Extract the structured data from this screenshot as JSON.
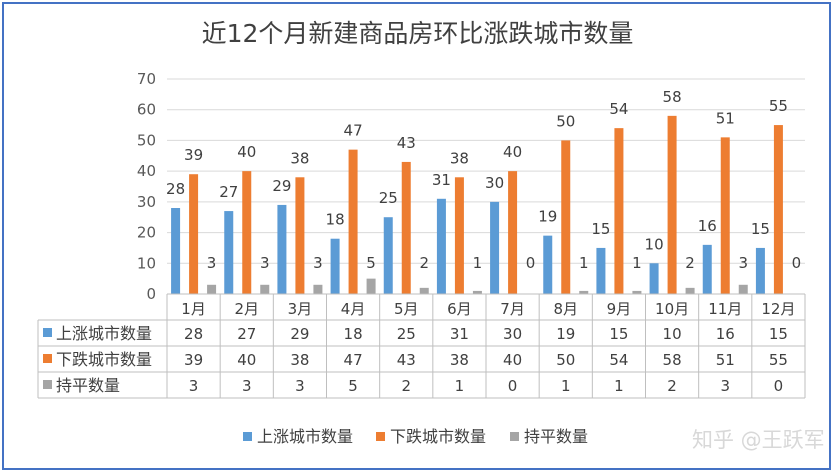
{
  "chart_data": {
    "type": "bar",
    "title": "近12个月新建商品房环比涨跌城市数量",
    "categories": [
      "1月",
      "2月",
      "3月",
      "4月",
      "5月",
      "6月",
      "7月",
      "8月",
      "9月",
      "10月",
      "11月",
      "12月"
    ],
    "series": [
      {
        "name": "上涨城市数量",
        "color": "#5b9bd5",
        "values": [
          28,
          27,
          29,
          18,
          25,
          31,
          30,
          19,
          15,
          10,
          16,
          15
        ]
      },
      {
        "name": "下跌城市数量",
        "color": "#ed7d31",
        "values": [
          39,
          40,
          38,
          47,
          43,
          38,
          40,
          50,
          54,
          58,
          51,
          55
        ]
      },
      {
        "name": "持平数量",
        "color": "#a5a5a5",
        "values": [
          3,
          3,
          3,
          5,
          2,
          1,
          0,
          1,
          1,
          2,
          3,
          0
        ]
      }
    ],
    "ylim": [
      0,
      70
    ],
    "yticks": [
      0,
      10,
      20,
      30,
      40,
      50,
      60,
      70
    ],
    "grid": true,
    "legend": "bottom",
    "data_table": true
  },
  "watermark": "知乎 @王跃军"
}
